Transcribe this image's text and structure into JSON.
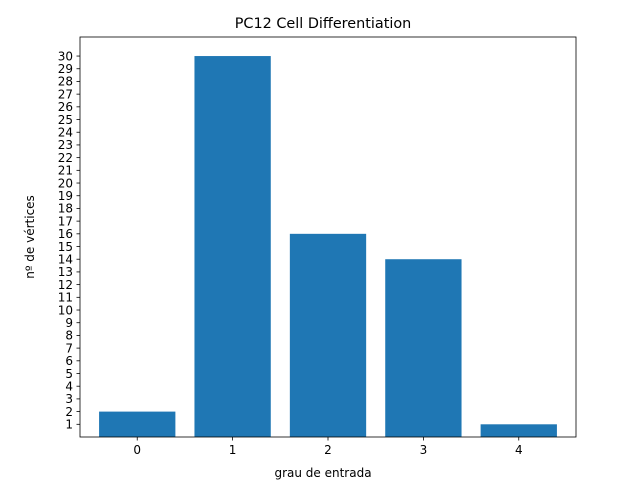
{
  "chart_data": {
    "type": "bar",
    "title": "PC12 Cell Differentiation",
    "xlabel": "grau de entrada",
    "ylabel": "nº de vértices",
    "categories": [
      "0",
      "1",
      "2",
      "3",
      "4"
    ],
    "values": [
      2,
      30,
      16,
      14,
      1
    ],
    "ylim": [
      0,
      31.5
    ],
    "yticks": [
      1,
      2,
      3,
      4,
      5,
      6,
      7,
      8,
      9,
      10,
      11,
      12,
      13,
      14,
      15,
      16,
      17,
      18,
      19,
      20,
      21,
      22,
      23,
      24,
      25,
      26,
      27,
      28,
      29,
      30
    ],
    "bar_color": "#1f77b4",
    "grid": false,
    "legend": "none"
  }
}
